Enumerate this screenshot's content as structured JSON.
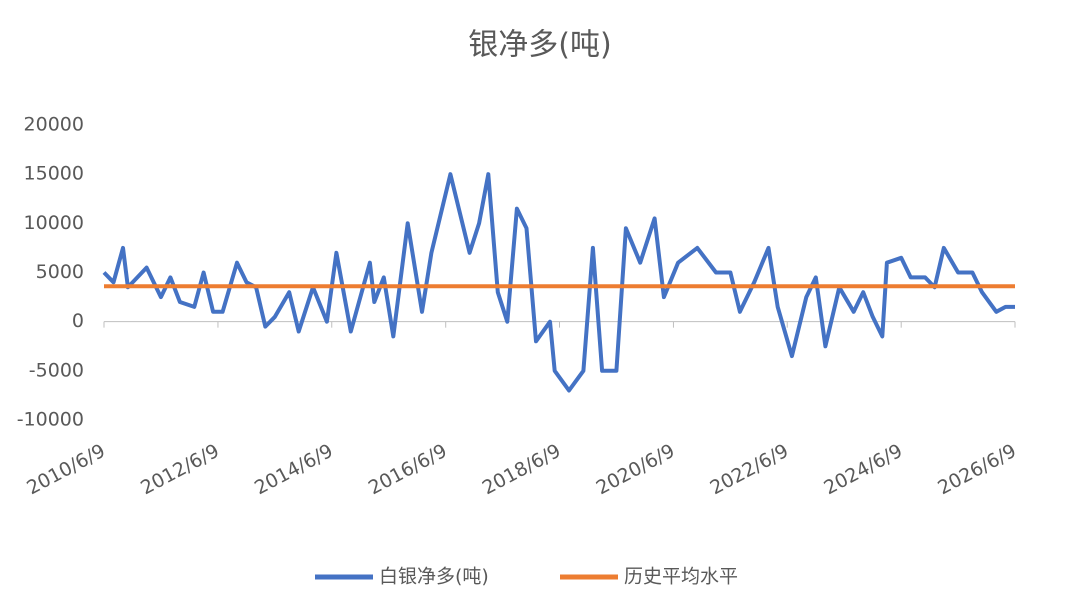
{
  "chart_data": {
    "type": "line",
    "title": "银净多(吨)",
    "x": [
      "2010/6/9",
      "2010/8/9",
      "2010/10/9",
      "2010/11/9",
      "2011/3/9",
      "2011/6/9",
      "2011/8/9",
      "2011/10/9",
      "2012/1/9",
      "2012/3/9",
      "2012/5/9",
      "2012/7/9",
      "2012/10/9",
      "2012/12/9",
      "2013/2/9",
      "2013/4/9",
      "2013/6/9",
      "2013/9/9",
      "2013/11/9",
      "2014/2/9",
      "2014/5/9",
      "2014/7/9",
      "2014/10/9",
      "2015/2/9",
      "2015/3/9",
      "2015/5/9",
      "2015/7/9",
      "2015/10/9",
      "2016/1/9",
      "2016/3/9",
      "2016/5/9",
      "2016/7/9",
      "2016/9/9",
      "2016/11/9",
      "2017/1/9",
      "2017/3/9",
      "2017/5/9",
      "2017/7/9",
      "2017/9/9",
      "2017/11/9",
      "2018/1/9",
      "2018/4/9",
      "2018/5/9",
      "2018/8/9",
      "2018/11/9",
      "2019/1/9",
      "2019/3/9",
      "2019/6/9",
      "2019/8/9",
      "2019/11/9",
      "2020/2/9",
      "2020/4/9",
      "2020/7/9",
      "2020/11/9",
      "2021/3/9",
      "2021/6/9",
      "2021/8/9",
      "2021/11/9",
      "2022/2/9",
      "2022/4/9",
      "2022/7/9",
      "2022/10/9",
      "2022/12/9",
      "2023/2/9",
      "2023/5/9",
      "2023/8/9",
      "2023/10/9",
      "2023/12/9",
      "2024/2/9",
      "2024/3/9",
      "2024/6/9",
      "2024/8/9",
      "2024/11/9",
      "2025/1/9",
      "2025/3/9",
      "2025/6/9",
      "2025/9/9",
      "2025/11/9",
      "2026/2/9",
      "2026/4/9",
      "2026/6/9"
    ],
    "series": [
      {
        "name": "白银净多(吨)",
        "color": "#4472c4",
        "values": [
          5000,
          4000,
          7500,
          3500,
          5500,
          2500,
          4500,
          2000,
          1500,
          5000,
          1000,
          1000,
          6000,
          4000,
          3500,
          -500,
          500,
          3000,
          -1000,
          3500,
          0,
          7000,
          -1000,
          6000,
          2000,
          4500,
          -1500,
          10000,
          1000,
          7000,
          11000,
          15000,
          11000,
          7000,
          10000,
          15000,
          3000,
          0,
          11500,
          9500,
          -2000,
          0,
          -5000,
          -7000,
          -5000,
          7500,
          -5000,
          -5000,
          9500,
          6000,
          10500,
          2500,
          6000,
          7500,
          5000,
          5000,
          1000,
          4000,
          7500,
          1500,
          -3500,
          2500,
          4500,
          -2500,
          3500,
          1000,
          3000,
          500,
          -1500,
          6000,
          6500,
          4500,
          4500,
          3500,
          7500,
          5000,
          5000,
          3000,
          1000,
          1500,
          1500
        ]
      },
      {
        "name": "历史平均水平",
        "color": "#ed7d31",
        "values": [
          3600,
          3600,
          3600,
          3600,
          3600,
          3600,
          3600,
          3600,
          3600,
          3600,
          3600,
          3600,
          3600,
          3600,
          3600,
          3600,
          3600,
          3600,
          3600,
          3600,
          3600,
          3600,
          3600,
          3600,
          3600,
          3600,
          3600,
          3600,
          3600,
          3600,
          3600,
          3600,
          3600,
          3600,
          3600,
          3600,
          3600,
          3600,
          3600,
          3600,
          3600,
          3600,
          3600,
          3600,
          3600,
          3600,
          3600,
          3600,
          3600,
          3600,
          3600,
          3600,
          3600,
          3600,
          3600,
          3600,
          3600,
          3600,
          3600,
          3600,
          3600,
          3600,
          3600,
          3600,
          3600,
          3600,
          3600,
          3600,
          3600,
          3600,
          3600,
          3600,
          3600,
          3600,
          3600,
          3600,
          3600,
          3600,
          3600,
          3600,
          3600
        ]
      }
    ],
    "xlim": [
      "2010/6/9",
      "2026/6/9"
    ],
    "xticks": [
      "2010/6/9",
      "2012/6/9",
      "2014/6/9",
      "2016/6/9",
      "2018/6/9",
      "2020/6/9",
      "2022/6/9",
      "2024/6/9",
      "2026/6/9"
    ],
    "ylim": [
      -10000,
      20000
    ],
    "yticks": [
      -10000,
      -5000,
      0,
      5000,
      10000,
      15000,
      20000
    ],
    "grid": false,
    "legend": "bottom"
  }
}
